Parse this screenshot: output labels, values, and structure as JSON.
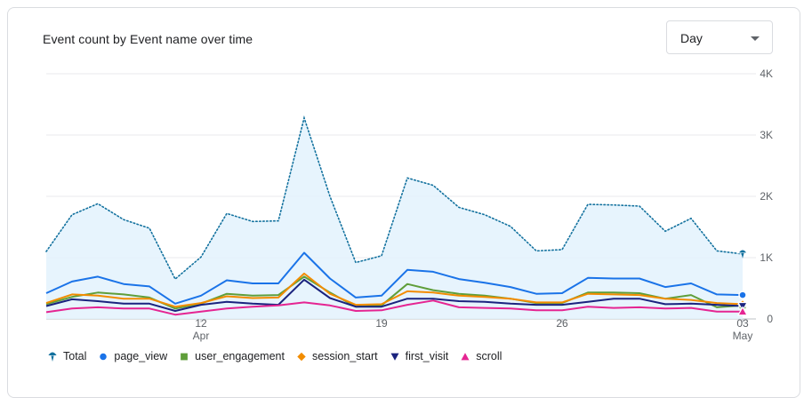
{
  "card": {
    "title": "Event count by Event name over time"
  },
  "granularity": {
    "selected": "Day"
  },
  "chart_data": {
    "type": "line",
    "title": "Event count by Event name over time",
    "xlabel": "",
    "ylabel": "",
    "x": [
      "Apr 6",
      "Apr 7",
      "Apr 8",
      "Apr 9",
      "Apr 10",
      "Apr 11",
      "Apr 12",
      "Apr 13",
      "Apr 14",
      "Apr 15",
      "Apr 16",
      "Apr 17",
      "Apr 18",
      "Apr 19",
      "Apr 20",
      "Apr 21",
      "Apr 22",
      "Apr 23",
      "Apr 24",
      "Apr 25",
      "Apr 26",
      "Apr 27",
      "Apr 28",
      "Apr 29",
      "Apr 30",
      "May 1",
      "May 2",
      "May 3"
    ],
    "x_tick_labels": [
      {
        "index": 6,
        "day": "12",
        "month": "Apr"
      },
      {
        "index": 13,
        "day": "19",
        "month": ""
      },
      {
        "index": 20,
        "day": "26",
        "month": ""
      },
      {
        "index": 27,
        "day": "03",
        "month": "May"
      }
    ],
    "yticks": [
      0,
      1000,
      2000,
      3000,
      4000
    ],
    "ytick_labels": [
      "0",
      "1K",
      "2K",
      "3K",
      "4K"
    ],
    "ylim": [
      0,
      4000
    ],
    "grid": true,
    "legend_position": "bottom-left",
    "series": [
      {
        "name": "Total",
        "color": "#12719e",
        "style": "dotted-area",
        "marker": "pin",
        "values": [
          1100,
          1700,
          1880,
          1620,
          1480,
          650,
          1010,
          1720,
          1590,
          1600,
          3280,
          2000,
          920,
          1030,
          2300,
          2180,
          1820,
          1700,
          1510,
          1110,
          1130,
          1870,
          1860,
          1840,
          1430,
          1640,
          1110,
          1060
        ]
      },
      {
        "name": "page_view",
        "color": "#1a73e8",
        "style": "solid",
        "marker": "circle",
        "values": [
          420,
          610,
          690,
          570,
          530,
          250,
          380,
          630,
          580,
          580,
          1080,
          660,
          350,
          380,
          800,
          770,
          650,
          590,
          520,
          410,
          420,
          670,
          660,
          660,
          520,
          580,
          400,
          390
        ]
      },
      {
        "name": "user_engagement",
        "color": "#5f9e3a",
        "style": "solid",
        "marker": "square",
        "values": [
          240,
          360,
          430,
          400,
          350,
          170,
          250,
          410,
          380,
          390,
          690,
          430,
          200,
          220,
          570,
          470,
          410,
          380,
          330,
          260,
          260,
          430,
          430,
          420,
          330,
          390,
          190,
          220
        ]
      },
      {
        "name": "session_start",
        "color": "#f28c00",
        "style": "solid",
        "marker": "diamond",
        "values": [
          260,
          400,
          380,
          330,
          330,
          200,
          260,
          370,
          340,
          350,
          740,
          410,
          230,
          240,
          450,
          430,
          380,
          360,
          330,
          270,
          270,
          410,
          400,
          390,
          330,
          310,
          260,
          240
        ]
      },
      {
        "name": "first_visit",
        "color": "#1a237e",
        "style": "solid",
        "marker": "triangle-down",
        "values": [
          210,
          320,
          290,
          250,
          250,
          130,
          230,
          280,
          250,
          230,
          640,
          340,
          200,
          200,
          330,
          330,
          290,
          280,
          250,
          230,
          230,
          280,
          330,
          330,
          240,
          250,
          230,
          210
        ]
      },
      {
        "name": "scroll",
        "color": "#e52592",
        "style": "solid",
        "marker": "triangle-up",
        "values": [
          110,
          170,
          190,
          170,
          170,
          70,
          120,
          170,
          200,
          220,
          270,
          220,
          130,
          140,
          230,
          300,
          190,
          180,
          170,
          140,
          140,
          200,
          180,
          190,
          170,
          180,
          120,
          120
        ]
      }
    ]
  }
}
